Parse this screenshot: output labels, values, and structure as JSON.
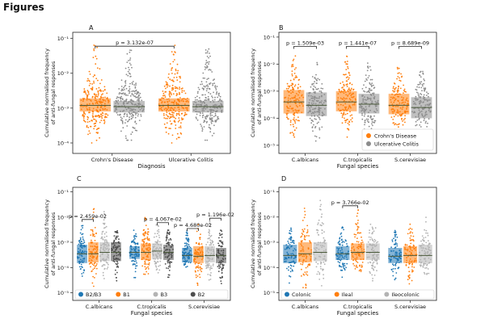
{
  "page_title": "Figures",
  "colors": {
    "orange": "#ff7f0e",
    "grey": "#8c8c8c",
    "light_grey": "#b3b3b3",
    "dark_grey": "#4d4d4d",
    "blue": "#1f77b4",
    "median": "#4a5a3a"
  },
  "chart_data": [
    {
      "panel": "A",
      "type": "scatter",
      "subtype": "swarm-box",
      "title": "",
      "xlabel": "Diagnosis",
      "ylabel": "Cumulative normalised frequency\nof anti-fungal responses",
      "ylim": [
        5e-05,
        0.15
      ],
      "yscale": "log",
      "yticks": [
        {
          "label": "10⁻¹",
          "value": 0.1
        },
        {
          "label": "10⁻²",
          "value": 0.01
        },
        {
          "label": "10⁻³",
          "value": 0.001
        },
        {
          "label": "10⁻⁴",
          "value": 0.0001
        }
      ],
      "categories": [
        "Crohn's Disease",
        "Ulcerative Colitis"
      ],
      "series": [
        {
          "name": "Crohn's Disease",
          "color": "orange",
          "median": 0.0012,
          "q1": 0.0008,
          "q3": 0.0019,
          "spread_low": 0.0001,
          "spread_high": 0.065
        },
        {
          "name": "Ulcerative Colitis",
          "color": "grey",
          "median": 0.0011,
          "q1": 0.00075,
          "q3": 0.0016,
          "spread_low": 0.00012,
          "spread_high": 0.05
        }
      ],
      "annotations": [
        {
          "text": "p = 3.132e-07",
          "between": [
            0,
            1
          ],
          "y": 0.06
        }
      ],
      "legend": []
    },
    {
      "panel": "B",
      "type": "scatter",
      "subtype": "swarm-box",
      "title": "",
      "xlabel": "Fungal species",
      "ylabel": "Cumulative normalised frequency\nof anti-fungal responses",
      "ylim": [
        5e-06,
        0.15
      ],
      "yscale": "log",
      "yticks": [
        {
          "label": "10⁻¹",
          "value": 0.1
        },
        {
          "label": "10⁻²",
          "value": 0.01
        },
        {
          "label": "10⁻³",
          "value": 0.001
        },
        {
          "label": "10⁻⁴",
          "value": 0.0001
        },
        {
          "label": "10⁻⁵",
          "value": 1e-05
        }
      ],
      "categories": [
        "C.albicans",
        "C.tropicalis",
        "S.cerevisiae"
      ],
      "series": [
        {
          "name": "Crohn's Disease",
          "color": "orange",
          "medians": [
            0.0004,
            0.0004,
            0.0003
          ],
          "q1": [
            0.00015,
            0.00018,
            0.00014
          ],
          "q3": [
            0.0011,
            0.001,
            0.0008
          ],
          "spread_low": [
            1.2e-05,
            2e-05,
            1.5e-05
          ],
          "spread_high": [
            0.02,
            0.02,
            0.008
          ]
        },
        {
          "name": "Ulcerative Colitis",
          "color": "grey",
          "medians": [
            0.0003,
            0.00033,
            0.00025
          ],
          "q1": [
            0.00012,
            0.00015,
            0.0001
          ],
          "q3": [
            0.0009,
            0.0008,
            0.0006
          ],
          "spread_low": [
            1e-05,
            1.5e-05,
            1e-05
          ],
          "spread_high": [
            0.015,
            0.015,
            0.006
          ]
        }
      ],
      "annotations": [
        {
          "text": "p = 1.509e-03",
          "group": 0,
          "y": 0.045
        },
        {
          "text": "p = 1.441e-07",
          "group": 1,
          "y": 0.045
        },
        {
          "text": "p = 8.689e-09",
          "group": 2,
          "y": 0.045
        }
      ],
      "legend": [
        "Crohn's Disease",
        "Ulcerative Colitis"
      ],
      "legend_position": "bottom-right"
    },
    {
      "panel": "C",
      "type": "scatter",
      "subtype": "swarm-box",
      "title": "",
      "xlabel": "Fungal species",
      "ylabel": "Cumulative normalised frequency\nof anti-fungal responses",
      "ylim": [
        5e-06,
        0.15
      ],
      "yscale": "log",
      "yticks": [
        {
          "label": "10⁻¹",
          "value": 0.1
        },
        {
          "label": "10⁻²",
          "value": 0.01
        },
        {
          "label": "10⁻³",
          "value": 0.001
        },
        {
          "label": "10⁻⁴",
          "value": 0.0001
        },
        {
          "label": "10⁻⁵",
          "value": 1e-05
        }
      ],
      "categories": [
        "C.albicans",
        "C.tropicalis",
        "S.cerevisiae"
      ],
      "series": [
        {
          "name": "B2/B3",
          "color": "blue",
          "medians": [
            0.00035,
            0.0004,
            0.0003
          ],
          "q1": [
            0.00015,
            0.00022,
            0.00016
          ],
          "q3": [
            0.0008,
            0.0007,
            0.0006
          ],
          "spread_low": [
            3e-05,
            4e-05,
            4e-05
          ],
          "spread_high": [
            0.005,
            0.003,
            0.003
          ]
        },
        {
          "name": "B1",
          "color": "orange",
          "medians": [
            0.00035,
            0.0004,
            0.00028
          ],
          "q1": [
            0.00016,
            0.0002,
            0.00015
          ],
          "q3": [
            0.001,
            0.0009,
            0.0007
          ],
          "spread_low": [
            1.5e-05,
            2e-05,
            2e-05
          ],
          "spread_high": [
            0.03,
            0.02,
            0.01
          ]
        },
        {
          "name": "B3",
          "color": "light_grey",
          "medians": [
            0.0004,
            0.00045,
            0.0003
          ],
          "q1": [
            0.00018,
            0.00022,
            0.00016
          ],
          "q3": [
            0.001,
            0.0009,
            0.0007
          ],
          "spread_low": [
            2e-05,
            3e-05,
            2e-05
          ],
          "spread_high": [
            0.02,
            0.008,
            0.008
          ]
        },
        {
          "name": "B2",
          "color": "dark_grey",
          "medians": [
            0.0004,
            0.0004,
            0.0003
          ],
          "q1": [
            0.00018,
            0.0002,
            0.00015
          ],
          "q3": [
            0.001,
            0.0008,
            0.0006
          ],
          "spread_low": [
            3e-05,
            3e-05,
            2e-05
          ],
          "spread_high": [
            0.004,
            0.003,
            0.003
          ]
        }
      ],
      "annotations": [
        {
          "text": "p = 2.459e-02",
          "group": 0,
          "pair": [
            0,
            1
          ],
          "y": 0.008
        },
        {
          "text": "p = 4.067e-02",
          "group": 1,
          "pair": [
            2,
            3
          ],
          "y": 0.006
        },
        {
          "text": "p = 1.196e-02",
          "group": 2,
          "pair": [
            2,
            3
          ],
          "y": 0.009
        },
        {
          "text": "p = 4.680e-02",
          "group": 2,
          "pair": [
            0,
            1
          ],
          "y": 0.0035
        }
      ],
      "legend": [
        "B2/B3",
        "B1",
        "B3",
        "B2"
      ],
      "legend_position": "bottom"
    },
    {
      "panel": "D",
      "type": "scatter",
      "subtype": "swarm-box",
      "title": "",
      "xlabel": "Fungal species",
      "ylabel": "Cumulative normalised frequency\nof anti-fungal responses",
      "ylim": [
        5e-06,
        0.15
      ],
      "yscale": "log",
      "yticks": [
        {
          "label": "10⁻¹",
          "value": 0.1
        },
        {
          "label": "10⁻²",
          "value": 0.01
        },
        {
          "label": "10⁻³",
          "value": 0.001
        },
        {
          "label": "10⁻⁴",
          "value": 0.0001
        },
        {
          "label": "10⁻⁵",
          "value": 1e-05
        }
      ],
      "categories": [
        "C.albicans",
        "C.tropicalis",
        "S.cerevisiae"
      ],
      "series": [
        {
          "name": "Colonic",
          "color": "blue",
          "medians": [
            0.0003,
            0.00035,
            0.00028
          ],
          "q1": [
            0.00015,
            0.0002,
            0.00015
          ],
          "q3": [
            0.0008,
            0.0007,
            0.0006
          ],
          "spread_low": [
            2e-05,
            3e-05,
            3e-05
          ],
          "spread_high": [
            0.005,
            0.004,
            0.003
          ]
        },
        {
          "name": "Ileal",
          "color": "orange",
          "medians": [
            0.00035,
            0.0004,
            0.0003
          ],
          "q1": [
            0.00016,
            0.0002,
            0.00015
          ],
          "q3": [
            0.001,
            0.0009,
            0.0007
          ],
          "spread_low": [
            1e-05,
            2e-05,
            2e-05
          ],
          "spread_high": [
            0.04,
            0.02,
            0.008
          ]
        },
        {
          "name": "Ileocolonic",
          "color": "light_grey",
          "medians": [
            0.0004,
            0.0004,
            0.0003
          ],
          "q1": [
            0.00018,
            0.0002,
            0.00015
          ],
          "q3": [
            0.001,
            0.0009,
            0.0008
          ],
          "spread_low": [
            1e-05,
            2e-05,
            2e-05
          ],
          "spread_high": [
            0.05,
            0.02,
            0.01
          ]
        }
      ],
      "annotations": [
        {
          "text": "p = 3.766e-02",
          "group": 1,
          "pair": [
            0,
            1
          ],
          "y": 0.028
        }
      ],
      "legend": [
        "Colonic",
        "Ileal",
        "Ileocolonic"
      ],
      "legend_position": "bottom"
    }
  ]
}
